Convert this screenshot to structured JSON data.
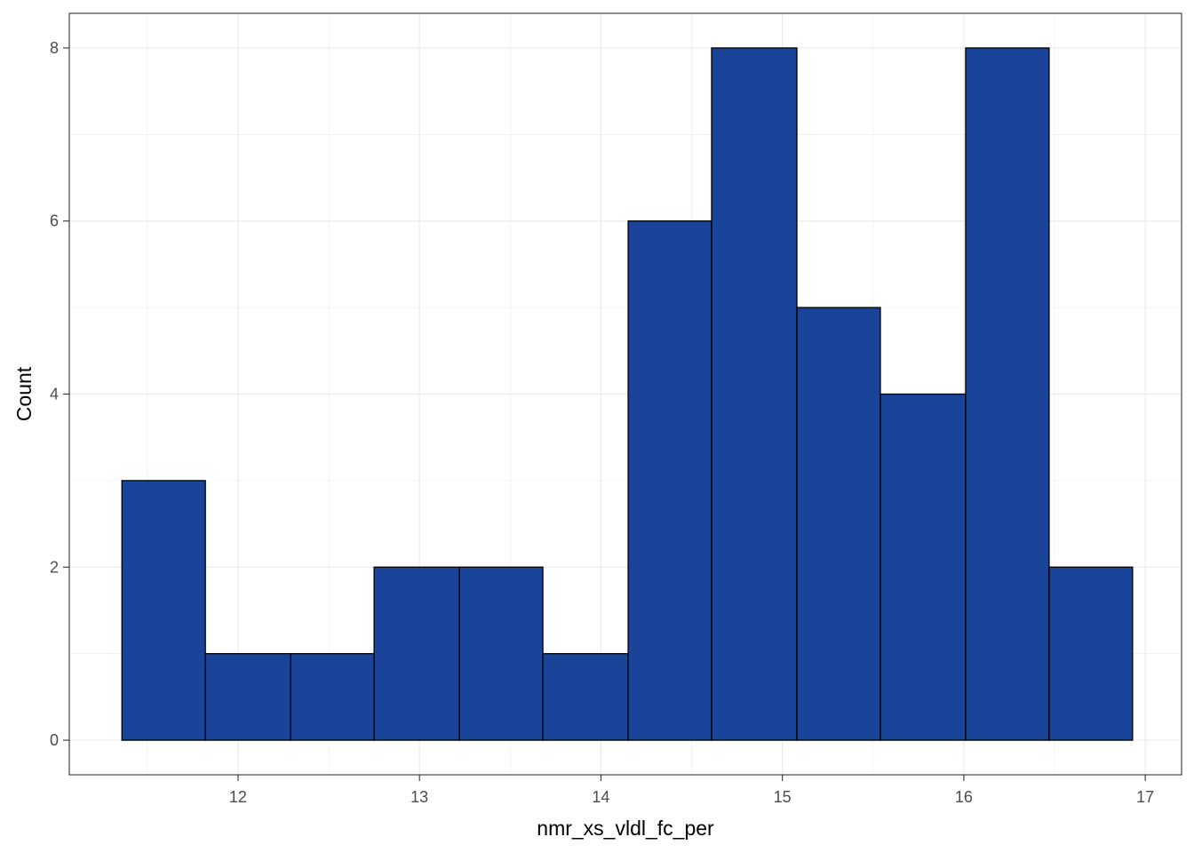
{
  "chart_data": {
    "type": "bar",
    "subtype": "histogram",
    "title": "",
    "xlabel": "nmr_xs_vldl_fc_per",
    "ylabel": "Count",
    "xlim": [
      11.07,
      17.2
    ],
    "ylim": [
      -0.4,
      8.4
    ],
    "xticks": [
      12,
      13,
      14,
      15,
      16,
      17
    ],
    "xtick_labels": [
      "12",
      "13",
      "14",
      "15",
      "16",
      "17"
    ],
    "yticks": [
      0,
      2,
      4,
      6,
      8
    ],
    "ytick_labels": [
      "0",
      "2",
      "4",
      "6",
      "8"
    ],
    "grid": true,
    "legend": "none",
    "bar_fill": "#1A4499",
    "bar_stroke": "#000000",
    "bins": [
      {
        "x0": 11.36,
        "x1": 11.82,
        "count": 3
      },
      {
        "x0": 11.82,
        "x1": 12.29,
        "count": 1
      },
      {
        "x0": 12.29,
        "x1": 12.75,
        "count": 1
      },
      {
        "x0": 12.75,
        "x1": 13.22,
        "count": 2
      },
      {
        "x0": 13.22,
        "x1": 13.68,
        "count": 2
      },
      {
        "x0": 13.68,
        "x1": 14.15,
        "count": 1
      },
      {
        "x0": 14.15,
        "x1": 14.61,
        "count": 6
      },
      {
        "x0": 14.61,
        "x1": 15.08,
        "count": 8
      },
      {
        "x0": 15.08,
        "x1": 15.54,
        "count": 5
      },
      {
        "x0": 15.54,
        "x1": 16.01,
        "count": 4
      },
      {
        "x0": 16.01,
        "x1": 16.47,
        "count": 8
      },
      {
        "x0": 16.47,
        "x1": 16.93,
        "count": 2
      }
    ]
  }
}
